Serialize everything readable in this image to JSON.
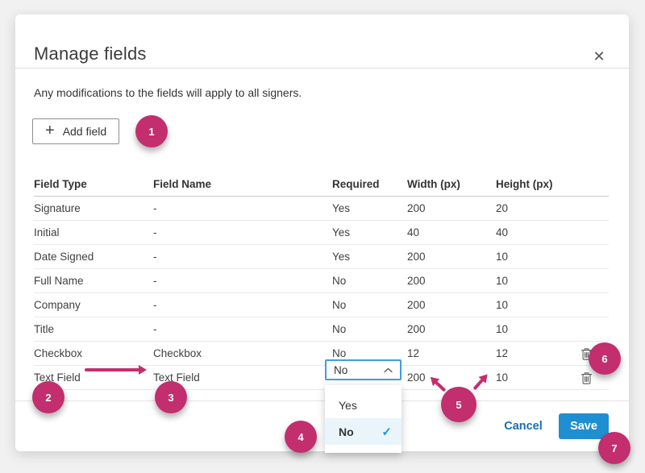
{
  "dialog": {
    "title": "Manage fields",
    "description": "Any modifications to the fields will apply to all signers.",
    "add_field_label": "Add field"
  },
  "icons": {
    "close": "✕",
    "plus": "+",
    "check": "✓"
  },
  "table": {
    "headers": [
      "Field Type",
      "Field Name",
      "Required",
      "Width (px)",
      "Height (px)"
    ],
    "rows": [
      {
        "field_type": "Signature",
        "field_name": "-",
        "required": "Yes",
        "width": "200",
        "height": "20",
        "deletable": false
      },
      {
        "field_type": "Initial",
        "field_name": "-",
        "required": "Yes",
        "width": "40",
        "height": "40",
        "deletable": false
      },
      {
        "field_type": "Date Signed",
        "field_name": "-",
        "required": "Yes",
        "width": "200",
        "height": "10",
        "deletable": false
      },
      {
        "field_type": "Full Name",
        "field_name": "-",
        "required": "No",
        "width": "200",
        "height": "10",
        "deletable": false
      },
      {
        "field_type": "Company",
        "field_name": "-",
        "required": "No",
        "width": "200",
        "height": "10",
        "deletable": false
      },
      {
        "field_type": "Title",
        "field_name": "-",
        "required": "No",
        "width": "200",
        "height": "10",
        "deletable": false
      },
      {
        "field_type": "Checkbox",
        "field_name": "Checkbox",
        "required": "No",
        "width": "12",
        "height": "12",
        "deletable": true
      },
      {
        "field_type": "Text Field",
        "field_name": "Text Field",
        "required": "",
        "width": "200",
        "height": "10",
        "deletable": true,
        "required_dropdown": true
      }
    ]
  },
  "dropdown": {
    "selected": "No",
    "options": [
      {
        "label": "Yes",
        "selected": false
      },
      {
        "label": "No",
        "selected": true
      }
    ]
  },
  "footer": {
    "cancel_label": "Cancel",
    "save_label": "Save"
  },
  "annotations": {
    "badges": [
      "1",
      "2",
      "3",
      "4",
      "5",
      "6",
      "7"
    ]
  },
  "colors": {
    "badge": "#C22E6E",
    "save_bg": "#1E8FD0",
    "link_blue": "#1A6FAD",
    "select_border": "#3FA0DA",
    "check_blue": "#2196D8",
    "highlight": "#EAF5FB"
  }
}
